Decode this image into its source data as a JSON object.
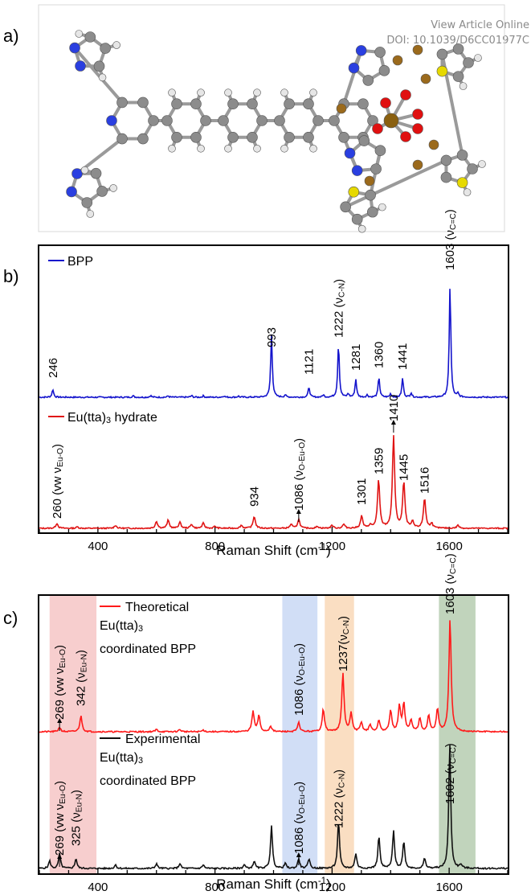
{
  "header": {
    "view_article": "View Article Online",
    "doi": "DOI: 10.1039/D6CC01977C"
  },
  "panels": {
    "a": "a)",
    "b": "b)",
    "c": "c)"
  },
  "colors": {
    "bpp": "#1414cc",
    "eu": "#e01414",
    "theory": "#ff1a1a",
    "exp": "#111111",
    "band_pink": "#f6c6c6",
    "band_blue": "#c9d8f5",
    "band_orange": "#f9d8b7",
    "band_green": "#b6ccb0"
  },
  "molecule": {
    "atom_colors": {
      "carbon": "#8c8c8c",
      "hydrogen": "#e6e6e6",
      "nitrogen": "#2a3fe0",
      "oxygen": "#e01010",
      "sulfur": "#e6d900",
      "fluorine": "#9b6a1c",
      "europium": "#8a6010"
    }
  },
  "chart_data": [
    {
      "type": "line",
      "panel": "b)",
      "xlabel": "Raman Shift (cm",
      "xlabel_sup": "-1",
      "xlabel_close": ")",
      "xlim": [
        200,
        1800
      ],
      "xticks": [
        "400",
        "800",
        "1200",
        "1600"
      ],
      "series": [
        {
          "name": "BPP",
          "color": "#1414cc",
          "peaks": [
            [
              246,
              0.07
            ],
            [
              520,
              0.012
            ],
            [
              580,
              0.015
            ],
            [
              640,
              0.012
            ],
            [
              720,
              0.014
            ],
            [
              760,
              0.012
            ],
            [
              830,
              0.013
            ],
            [
              880,
              0.01
            ],
            [
              993,
              0.56
            ],
            [
              1040,
              0.02
            ],
            [
              1121,
              0.09
            ],
            [
              1170,
              0.02
            ],
            [
              1222,
              0.48
            ],
            [
              1255,
              0.03
            ],
            [
              1281,
              0.16
            ],
            [
              1320,
              0.02
            ],
            [
              1360,
              0.18
            ],
            [
              1400,
              0.03
            ],
            [
              1441,
              0.17
            ],
            [
              1470,
              0.04
            ],
            [
              1603,
              1.0
            ],
            [
              1630,
              0.03
            ]
          ],
          "labels": [
            {
              "x": 246,
              "text": "246"
            },
            {
              "x": 993,
              "text": "993"
            },
            {
              "x": 1121,
              "text": "1121"
            },
            {
              "x": 1222,
              "text": "1222 (ν",
              "sub": "C-N",
              "close": ")"
            },
            {
              "x": 1281,
              "text": "1281"
            },
            {
              "x": 1360,
              "text": "1360"
            },
            {
              "x": 1441,
              "text": "1441"
            },
            {
              "x": 1603,
              "text": "1603 (ν",
              "sub": "C=C",
              "close": ")"
            }
          ]
        },
        {
          "name": "Eu(tta)",
          "name_sub": "3",
          "name_rest": " hydrate",
          "color": "#e01414",
          "peaks": [
            [
              260,
              0.05
            ],
            [
              330,
              0.015
            ],
            [
              460,
              0.03
            ],
            [
              600,
              0.07
            ],
            [
              640,
              0.08
            ],
            [
              680,
              0.06
            ],
            [
              720,
              0.04
            ],
            [
              760,
              0.05
            ],
            [
              800,
              0.02
            ],
            [
              890,
              0.03
            ],
            [
              934,
              0.12
            ],
            [
              1060,
              0.04
            ],
            [
              1086,
              0.09
            ],
            [
              1150,
              0.02
            ],
            [
              1200,
              0.03
            ],
            [
              1240,
              0.04
            ],
            [
              1301,
              0.12
            ],
            [
              1330,
              0.03
            ],
            [
              1359,
              0.48
            ],
            [
              1410,
              0.92
            ],
            [
              1445,
              0.46
            ],
            [
              1475,
              0.06
            ],
            [
              1516,
              0.3
            ],
            [
              1540,
              0.05
            ],
            [
              1630,
              0.03
            ]
          ],
          "labels": [
            {
              "x": 260,
              "text": "260 (vw ν",
              "sub": "Eu-O",
              "close": ")"
            },
            {
              "x": 934,
              "text": "934"
            },
            {
              "x": 1086,
              "text": "1086 (ν",
              "sub": "O-Eu-O",
              "close": ")",
              "arrow": true
            },
            {
              "x": 1301,
              "text": "1301"
            },
            {
              "x": 1359,
              "text": "1359"
            },
            {
              "x": 1410,
              "text": "1410",
              "arrow": true
            },
            {
              "x": 1445,
              "text": "1445"
            },
            {
              "x": 1516,
              "text": "1516"
            }
          ]
        }
      ]
    },
    {
      "type": "line",
      "panel": "c)",
      "xlabel": "Raman Shift (cm",
      "xlabel_sup": "-1",
      "xlabel_close": ")",
      "xlim": [
        200,
        1800
      ],
      "xticks": [
        "400",
        "800",
        "1200",
        "1600"
      ],
      "bands": [
        [
          235,
          395
        ],
        [
          1030,
          1150
        ],
        [
          1175,
          1275
        ],
        [
          1565,
          1690
        ]
      ],
      "series": [
        {
          "name": "Theoretical",
          "name_line2_a": "Eu(tta)",
          "name_line2_sub": "3",
          "name_line3": "coordinated BPP",
          "color": "#ff1a1a",
          "peaks": [
            [
              269,
              0.04
            ],
            [
              342,
              0.14
            ],
            [
              600,
              0.02
            ],
            [
              680,
              0.02
            ],
            [
              760,
              0.015
            ],
            [
              930,
              0.18
            ],
            [
              950,
              0.14
            ],
            [
              990,
              0.05
            ],
            [
              1086,
              0.08
            ],
            [
              1170,
              0.2
            ],
            [
              1237,
              0.52
            ],
            [
              1265,
              0.16
            ],
            [
              1300,
              0.08
            ],
            [
              1330,
              0.06
            ],
            [
              1360,
              0.1
            ],
            [
              1400,
              0.19
            ],
            [
              1430,
              0.22
            ],
            [
              1445,
              0.25
            ],
            [
              1470,
              0.1
            ],
            [
              1500,
              0.12
            ],
            [
              1530,
              0.14
            ],
            [
              1560,
              0.2
            ],
            [
              1603,
              1.0
            ]
          ],
          "labels": [
            {
              "x": 269,
              "text": "269 (vw ν",
              "sub": "Eu-O",
              "close": ")",
              "arrow": true
            },
            {
              "x": 342,
              "text": "342 (ν",
              "sub": "Eu-N",
              "close": ")"
            },
            {
              "x": 1086,
              "text": "1086 (ν",
              "sub": "O-Eu-O",
              "close": ")"
            },
            {
              "x": 1237,
              "text": "1237(ν",
              "sub": "C-N",
              "close": ")"
            },
            {
              "x": 1603,
              "text": "1603 (ν",
              "sub": "C=C",
              "close": ")"
            }
          ]
        },
        {
          "name": "Experimental",
          "name_line2_a": "Eu(tta)",
          "name_line2_sub": "3",
          "name_line3": "coordinated BPP",
          "color": "#111111",
          "peaks": [
            [
              235,
              0.06
            ],
            [
              269,
              0.12
            ],
            [
              325,
              0.08
            ],
            [
              460,
              0.03
            ],
            [
              600,
              0.04
            ],
            [
              680,
              0.04
            ],
            [
              760,
              0.03
            ],
            [
              900,
              0.03
            ],
            [
              934,
              0.06
            ],
            [
              993,
              0.34
            ],
            [
              1040,
              0.04
            ],
            [
              1086,
              0.08
            ],
            [
              1121,
              0.08
            ],
            [
              1222,
              0.38
            ],
            [
              1281,
              0.12
            ],
            [
              1360,
              0.26
            ],
            [
              1410,
              0.3
            ],
            [
              1445,
              0.22
            ],
            [
              1516,
              0.08
            ],
            [
              1602,
              1.0
            ],
            [
              1640,
              0.03
            ]
          ],
          "labels": [
            {
              "x": 269,
              "text": "269 (vw ν",
              "sub": "Eu-O",
              "close": ")",
              "arrow": true
            },
            {
              "x": 325,
              "text": "325 (ν",
              "sub": "Eu-N",
              "close": ")"
            },
            {
              "x": 1086,
              "text": "1086 (ν",
              "sub": "O-Eu-O",
              "close": ")",
              "arrow": true
            },
            {
              "x": 1222,
              "text": "1222 (ν",
              "sub": "C-N",
              "close": ")"
            },
            {
              "x": 1602,
              "text": "1602 (ν",
              "sub": "C=C",
              "close": ")"
            }
          ]
        }
      ]
    }
  ]
}
